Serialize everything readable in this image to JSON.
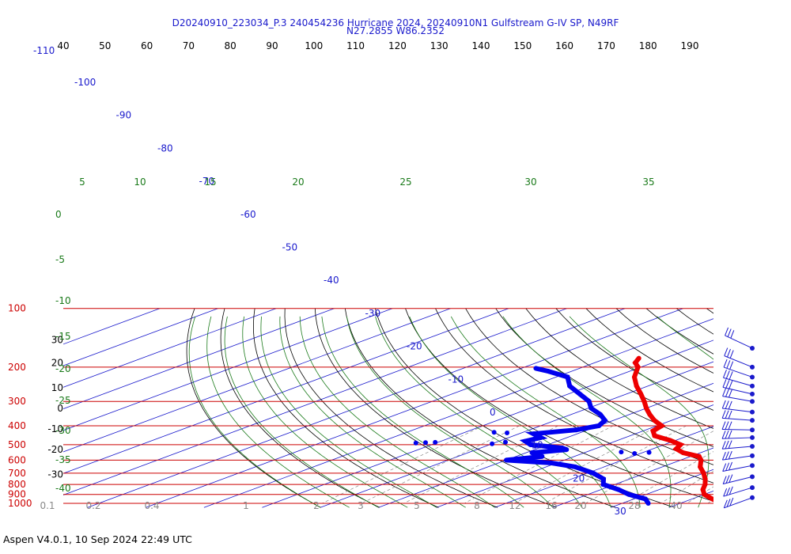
{
  "chart_data": {
    "type": "skew-t",
    "title_line1": "D20240910_223034_P.3 240454236 Hurricane 2024, 20240910N1 Gulfstream G-IV SP, N49RF",
    "title_line2": "N27.2855 W86.2352",
    "footer": "Aspen V4.0.1, 10 Sep 2024  22:49 UTC",
    "pressure_labels": [
      {
        "p": 100,
        "label": "100"
      },
      {
        "p": 200,
        "label": "200"
      },
      {
        "p": 300,
        "label": "300"
      },
      {
        "p": 400,
        "label": "400"
      },
      {
        "p": 500,
        "label": "500"
      },
      {
        "p": 600,
        "label": "600"
      },
      {
        "p": 700,
        "label": "700"
      },
      {
        "p": 800,
        "label": "800"
      },
      {
        "p": 900,
        "label": "900"
      },
      {
        "p": 1000,
        "label": "1000"
      }
    ],
    "top_axis_label": "-110",
    "top_axis_ticks": [
      "40",
      "50",
      "60",
      "70",
      "80",
      "90",
      "100",
      "110",
      "120",
      "130",
      "140",
      "150",
      "160",
      "170",
      "180",
      "190"
    ],
    "left_height_ticks": [
      {
        "label": "30",
        "p": 145
      },
      {
        "label": "20",
        "p": 190
      },
      {
        "label": "10",
        "p": 255
      },
      {
        "label": "0",
        "p": 325
      },
      {
        "label": "-10",
        "p": 415
      },
      {
        "label": "-20",
        "p": 530
      },
      {
        "label": "-30",
        "p": 710
      }
    ],
    "isotherm_labels": [
      "-100",
      "-90",
      "-80",
      "-70",
      "-60",
      "-50",
      "-40",
      "-30",
      "-20",
      "-10",
      "0",
      "10",
      "20",
      "30"
    ],
    "theta_e_labels_top": [
      "5",
      "10",
      "15",
      "20",
      "25",
      "30",
      "35"
    ],
    "theta_e_labels_left": [
      "0",
      "-5",
      "-10",
      "-15",
      "-20",
      "-25",
      "-30",
      "-35",
      "-40"
    ],
    "mixing_ratio_labels": [
      "0.1",
      "0.2",
      "0.4",
      "1",
      "2",
      "3",
      "5",
      "8",
      "12",
      "16",
      "20",
      "28",
      "40"
    ],
    "temperature_profile": [
      {
        "p": 180,
        "t": -54.5
      },
      {
        "p": 190,
        "t": -53.0
      },
      {
        "p": 200,
        "t": -50.5
      },
      {
        "p": 225,
        "t": -46.5
      },
      {
        "p": 250,
        "t": -42.0
      },
      {
        "p": 275,
        "t": -37.5
      },
      {
        "p": 300,
        "t": -33.5
      },
      {
        "p": 325,
        "t": -30.0
      },
      {
        "p": 350,
        "t": -26.5
      },
      {
        "p": 375,
        "t": -23.0
      },
      {
        "p": 400,
        "t": -19.2
      },
      {
        "p": 425,
        "t": -18.3
      },
      {
        "p": 450,
        "t": -15.8
      },
      {
        "p": 475,
        "t": -11.0
      },
      {
        "p": 500,
        "t": -7.2
      },
      {
        "p": 525,
        "t": -6.0
      },
      {
        "p": 550,
        "t": -3.0
      },
      {
        "p": 575,
        "t": 1.5
      },
      {
        "p": 600,
        "t": 3.5
      },
      {
        "p": 650,
        "t": 6.5
      },
      {
        "p": 700,
        "t": 10.0
      },
      {
        "p": 750,
        "t": 13.0
      },
      {
        "p": 800,
        "t": 15.5
      },
      {
        "p": 850,
        "t": 17.5
      },
      {
        "p": 900,
        "t": 20.0
      },
      {
        "p": 950,
        "t": 23.5
      },
      {
        "p": 1000,
        "t": 27.0
      }
    ],
    "dewpoint_profile": [
      {
        "p": 203,
        "t": -67.5
      },
      {
        "p": 210,
        "t": -64.0
      },
      {
        "p": 225,
        "t": -58.0
      },
      {
        "p": 250,
        "t": -53.5
      },
      {
        "p": 275,
        "t": -48.0
      },
      {
        "p": 300,
        "t": -43.0
      },
      {
        "p": 325,
        "t": -39.5
      },
      {
        "p": 350,
        "t": -35.0
      },
      {
        "p": 375,
        "t": -31.5
      },
      {
        "p": 400,
        "t": -30.0
      },
      {
        "p": 420,
        "t": -32.0
      },
      {
        "p": 440,
        "t": -37.5
      },
      {
        "p": 460,
        "t": -34.5
      },
      {
        "p": 480,
        "t": -35.5
      },
      {
        "p": 500,
        "t": -33.0
      },
      {
        "p": 520,
        "t": -26.0
      },
      {
        "p": 530,
        "t": -24.5
      },
      {
        "p": 550,
        "t": -29.0
      },
      {
        "p": 575,
        "t": -25.5
      },
      {
        "p": 600,
        "t": -30.0
      },
      {
        "p": 620,
        "t": -21.0
      },
      {
        "p": 650,
        "t": -15.0
      },
      {
        "p": 700,
        "t": -9.0
      },
      {
        "p": 750,
        "t": -4.5
      },
      {
        "p": 800,
        "t": -2.0
      },
      {
        "p": 850,
        "t": 3.0
      },
      {
        "p": 900,
        "t": 7.0
      },
      {
        "p": 950,
        "t": 12.0
      },
      {
        "p": 1000,
        "t": 14.5
      }
    ],
    "dewpoint_scatter": [
      {
        "p": 432,
        "t": -45.0
      },
      {
        "p": 435,
        "t": -42.5
      },
      {
        "p": 490,
        "t": -53.5
      },
      {
        "p": 488,
        "t": -52.0
      },
      {
        "p": 486,
        "t": -50.5
      },
      {
        "p": 495,
        "t": -40.0
      },
      {
        "p": 485,
        "t": -38.5
      },
      {
        "p": 545,
        "t": -14.0
      },
      {
        "p": 555,
        "t": -11.0
      },
      {
        "p": 548,
        "t": -9.0
      }
    ],
    "wind_barbs": [
      {
        "p": 160
      },
      {
        "p": 200
      },
      {
        "p": 225
      },
      {
        "p": 250
      },
      {
        "p": 275
      },
      {
        "p": 300
      },
      {
        "p": 340
      },
      {
        "p": 375
      },
      {
        "p": 420
      },
      {
        "p": 460
      },
      {
        "p": 510
      },
      {
        "p": 570
      },
      {
        "p": 640
      },
      {
        "p": 730
      },
      {
        "p": 830
      },
      {
        "p": 935
      }
    ],
    "colors": {
      "isobar": "#cc0000",
      "isotherm": "#1a1acc",
      "dry_adiabat": "#000000",
      "moist_adiabat": "#1a7a1a",
      "mixing_ratio": "#888888",
      "temperature": "#ee0000",
      "dewpoint": "#0000ee",
      "title": "#1a1acc"
    }
  }
}
